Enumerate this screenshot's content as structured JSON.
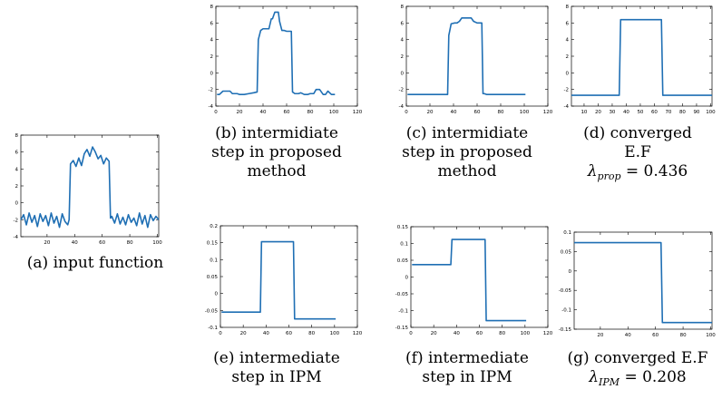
{
  "colors": {
    "series": "#1f6fb4",
    "axis": "#000000",
    "background": "#ffffff"
  },
  "panels": [
    {
      "id": "a",
      "caption_lines": [
        "(a) input function"
      ],
      "lambda": null
    },
    {
      "id": "b",
      "caption_lines": [
        "(b) intermidiate",
        "step in proposed",
        "method"
      ],
      "lambda": null
    },
    {
      "id": "c",
      "caption_lines": [
        "(c) intermidiate",
        "step in proposed",
        "method"
      ],
      "lambda": null
    },
    {
      "id": "d",
      "caption_lines": [
        "(d) converged",
        "E.F"
      ],
      "lambda": {
        "sub": "prop",
        "value": "= 0.436"
      }
    },
    {
      "id": "e",
      "caption_lines": [
        "(e) intermediate",
        "step in IPM"
      ],
      "lambda": null
    },
    {
      "id": "f",
      "caption_lines": [
        "(f) intermediate",
        "step in IPM"
      ],
      "lambda": null
    },
    {
      "id": "g",
      "caption_lines": [
        "(g) converged E.F"
      ],
      "lambda": {
        "sub": "IPM",
        "value": "= 0.208"
      }
    }
  ],
  "chart_data": [
    {
      "id": "a",
      "type": "line",
      "title": "",
      "xlabel": "",
      "ylabel": "",
      "xlim": [
        1,
        101
      ],
      "ylim": [
        -4,
        8
      ],
      "xticks": [
        20,
        40,
        60,
        80,
        100
      ],
      "yticks": [
        -4,
        -2,
        0,
        2,
        4,
        6,
        8
      ],
      "x": [
        1,
        3,
        5,
        7,
        9,
        11,
        13,
        15,
        17,
        19,
        21,
        23,
        25,
        27,
        29,
        31,
        33,
        35,
        36,
        37,
        39,
        41,
        43,
        45,
        47,
        49,
        51,
        53,
        55,
        57,
        59,
        61,
        63,
        65,
        66,
        67,
        69,
        71,
        73,
        75,
        77,
        79,
        81,
        83,
        85,
        87,
        89,
        91,
        93,
        95,
        97,
        99,
        101
      ],
      "y": [
        -2.0,
        -1.4,
        -2.6,
        -1.2,
        -2.3,
        -1.5,
        -2.8,
        -1.3,
        -2.2,
        -1.5,
        -2.7,
        -1.2,
        -2.4,
        -1.6,
        -2.9,
        -1.3,
        -2.2,
        -2.6,
        -2.0,
        4.6,
        5.0,
        4.3,
        5.3,
        4.4,
        5.8,
        6.3,
        5.5,
        6.6,
        6.0,
        5.2,
        5.6,
        4.6,
        5.3,
        4.9,
        -1.8,
        -1.6,
        -2.4,
        -1.3,
        -2.5,
        -1.7,
        -2.6,
        -1.4,
        -2.3,
        -1.8,
        -2.7,
        -1.2,
        -2.5,
        -1.5,
        -2.9,
        -1.4,
        -2.1,
        -1.6,
        -2.0
      ]
    },
    {
      "id": "b",
      "type": "line",
      "title": "",
      "xlabel": "",
      "ylabel": "",
      "xlim": [
        0,
        120
      ],
      "ylim": [
        -4,
        8
      ],
      "xticks": [
        0,
        20,
        40,
        60,
        80,
        100,
        120
      ],
      "yticks": [
        -4,
        -2,
        0,
        2,
        4,
        6,
        8
      ],
      "x": [
        1,
        3,
        6,
        8,
        12,
        14,
        18,
        20,
        24,
        28,
        32,
        35,
        36,
        38,
        40,
        43,
        45,
        47,
        48,
        50,
        51,
        53,
        54,
        56,
        58,
        60,
        62,
        64,
        65,
        67,
        70,
        72,
        75,
        78,
        80,
        83,
        85,
        88,
        91,
        93,
        95,
        98,
        101
      ],
      "y": [
        -2.6,
        -2.6,
        -2.2,
        -2.2,
        -2.2,
        -2.5,
        -2.5,
        -2.6,
        -2.6,
        -2.5,
        -2.4,
        -2.3,
        4.0,
        5.1,
        5.3,
        5.3,
        5.3,
        6.5,
        6.5,
        7.3,
        7.3,
        7.3,
        6.2,
        5.1,
        5.1,
        5.0,
        5.0,
        5.0,
        -2.3,
        -2.5,
        -2.5,
        -2.4,
        -2.6,
        -2.6,
        -2.5,
        -2.5,
        -2.0,
        -2.0,
        -2.6,
        -2.6,
        -2.2,
        -2.6,
        -2.6
      ]
    },
    {
      "id": "c",
      "type": "line",
      "title": "",
      "xlabel": "",
      "ylabel": "",
      "xlim": [
        0,
        120
      ],
      "ylim": [
        -4,
        8
      ],
      "xticks": [
        0,
        20,
        40,
        60,
        80,
        100,
        120
      ],
      "yticks": [
        -4,
        -2,
        0,
        2,
        4,
        6,
        8
      ],
      "x": [
        1,
        10,
        20,
        30,
        35,
        36,
        38,
        41,
        43,
        45,
        47,
        49,
        52,
        55,
        57,
        60,
        62,
        64,
        65,
        66,
        68,
        80,
        90,
        101
      ],
      "y": [
        -2.6,
        -2.6,
        -2.6,
        -2.6,
        -2.6,
        4.5,
        5.9,
        6.0,
        6.0,
        6.2,
        6.6,
        6.6,
        6.6,
        6.6,
        6.2,
        6.0,
        6.0,
        6.0,
        -2.5,
        -2.5,
        -2.6,
        -2.6,
        -2.6,
        -2.6
      ]
    },
    {
      "id": "d",
      "type": "line",
      "title": "",
      "xlabel": "",
      "ylabel": "",
      "xlim": [
        1,
        101
      ],
      "ylim": [
        -4,
        8
      ],
      "xticks": [
        10,
        20,
        30,
        40,
        50,
        60,
        70,
        80,
        90,
        100
      ],
      "yticks": [
        -4,
        -2,
        0,
        2,
        4,
        6,
        8
      ],
      "x": [
        1,
        35,
        36,
        65,
        66,
        101
      ],
      "y": [
        -2.7,
        -2.7,
        6.4,
        6.4,
        -2.7,
        -2.7
      ]
    },
    {
      "id": "e",
      "type": "line",
      "title": "",
      "xlabel": "",
      "ylabel": "",
      "xlim": [
        0,
        120
      ],
      "ylim": [
        -0.1,
        0.2
      ],
      "xticks": [
        0,
        20,
        40,
        60,
        80,
        100,
        120
      ],
      "yticks": [
        -0.1,
        -0.05,
        0,
        0.05,
        0.1,
        0.15,
        0.2
      ],
      "x": [
        1,
        35,
        36,
        64,
        65,
        101
      ],
      "y": [
        -0.055,
        -0.055,
        0.153,
        0.153,
        -0.075,
        -0.075
      ]
    },
    {
      "id": "f",
      "type": "line",
      "title": "",
      "xlabel": "",
      "ylabel": "",
      "xlim": [
        0,
        120
      ],
      "ylim": [
        -0.15,
        0.15
      ],
      "xticks": [
        0,
        20,
        40,
        60,
        80,
        100,
        120
      ],
      "yticks": [
        -0.15,
        -0.1,
        -0.05,
        0,
        0.05,
        0.1,
        0.15
      ],
      "x": [
        1,
        35,
        36,
        65,
        66,
        101
      ],
      "y": [
        0.037,
        0.037,
        0.112,
        0.112,
        -0.13,
        -0.13
      ]
    },
    {
      "id": "g",
      "type": "line",
      "title": "",
      "xlabel": "",
      "ylabel": "",
      "xlim": [
        1,
        101
      ],
      "ylim": [
        -0.15,
        0.1
      ],
      "xticks": [
        20,
        40,
        60,
        80,
        100
      ],
      "yticks": [
        -0.15,
        -0.1,
        -0.05,
        0,
        0.05,
        0.1
      ],
      "x": [
        1,
        64,
        65,
        101
      ],
      "y": [
        0.073,
        0.073,
        -0.133,
        -0.133
      ]
    }
  ]
}
